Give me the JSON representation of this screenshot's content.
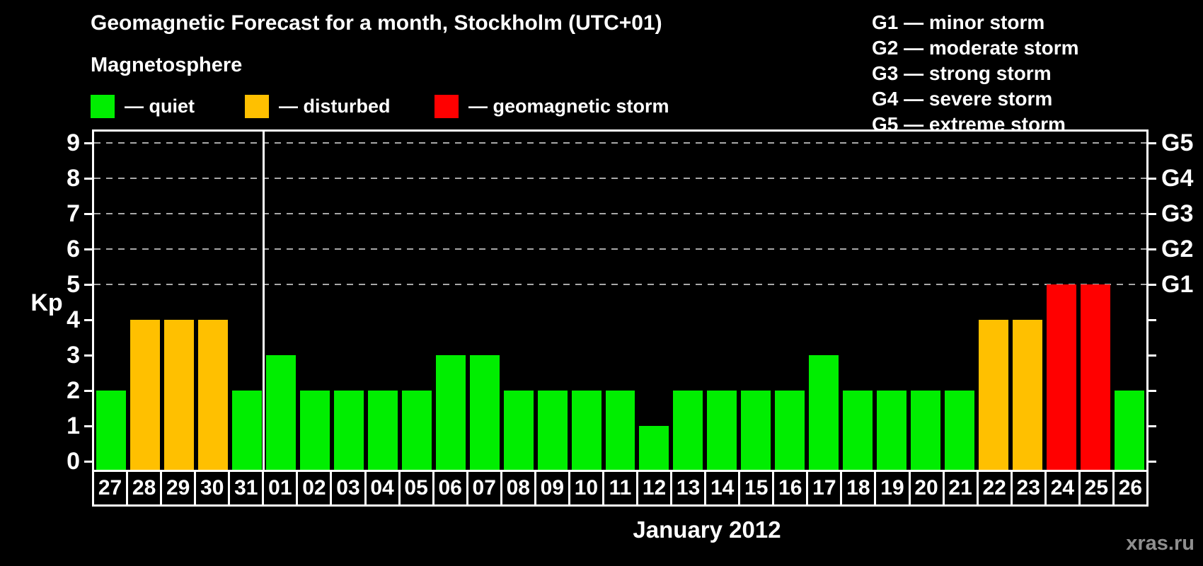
{
  "title": "Geomagnetic Forecast for a month, Stockholm (UTC+01)",
  "subtitle": "Magnetosphere",
  "legend": {
    "items": [
      {
        "status": "quiet",
        "label": "— quiet",
        "color": "#00ee00"
      },
      {
        "status": "disturbed",
        "label": "— disturbed",
        "color": "#ffc000"
      },
      {
        "status": "storm",
        "label": "— geomagnetic storm",
        "color": "#ff0000"
      }
    ]
  },
  "storm_scale": [
    "G1 — minor storm",
    "G2 — moderate storm",
    "G3 — strong storm",
    "G4 — severe storm",
    "G5 — extreme storm"
  ],
  "watermark": "xras.ru",
  "chart_data": {
    "type": "bar",
    "title": "Geomagnetic Forecast for a month, Stockholm (UTC+01)",
    "xlabel": "January 2012",
    "ylabel": "Kp",
    "ylim": [
      0,
      9
    ],
    "yticks": [
      0,
      1,
      2,
      3,
      4,
      5,
      6,
      7,
      8,
      9
    ],
    "gridlines_at": [
      5,
      6,
      7,
      8,
      9
    ],
    "grid": "horizontal dashed lines at Kp 5-9 (storm levels G1-G5)",
    "legend_position": "top-left",
    "right_axis": [
      {
        "kp": 5,
        "label": "G1"
      },
      {
        "kp": 6,
        "label": "G2"
      },
      {
        "kp": 7,
        "label": "G3"
      },
      {
        "kp": 8,
        "label": "G4"
      },
      {
        "kp": 9,
        "label": "G5"
      }
    ],
    "categories": [
      "27",
      "28",
      "29",
      "30",
      "31",
      "01",
      "02",
      "03",
      "04",
      "05",
      "06",
      "07",
      "08",
      "09",
      "10",
      "11",
      "12",
      "13",
      "14",
      "15",
      "16",
      "17",
      "18",
      "19",
      "20",
      "21",
      "22",
      "23",
      "24",
      "25",
      "26"
    ],
    "values": [
      2,
      4,
      4,
      4,
      2,
      3,
      2,
      2,
      2,
      2,
      3,
      3,
      2,
      2,
      2,
      2,
      1,
      2,
      2,
      2,
      2,
      3,
      2,
      2,
      2,
      2,
      4,
      4,
      5,
      5,
      2
    ],
    "statuses": [
      "quiet",
      "disturbed",
      "disturbed",
      "disturbed",
      "quiet",
      "quiet",
      "quiet",
      "quiet",
      "quiet",
      "quiet",
      "quiet",
      "quiet",
      "quiet",
      "quiet",
      "quiet",
      "quiet",
      "quiet",
      "quiet",
      "quiet",
      "quiet",
      "quiet",
      "quiet",
      "quiet",
      "quiet",
      "quiet",
      "quiet",
      "disturbed",
      "disturbed",
      "storm",
      "storm",
      "quiet"
    ],
    "month_boundary_after_index": 4
  }
}
